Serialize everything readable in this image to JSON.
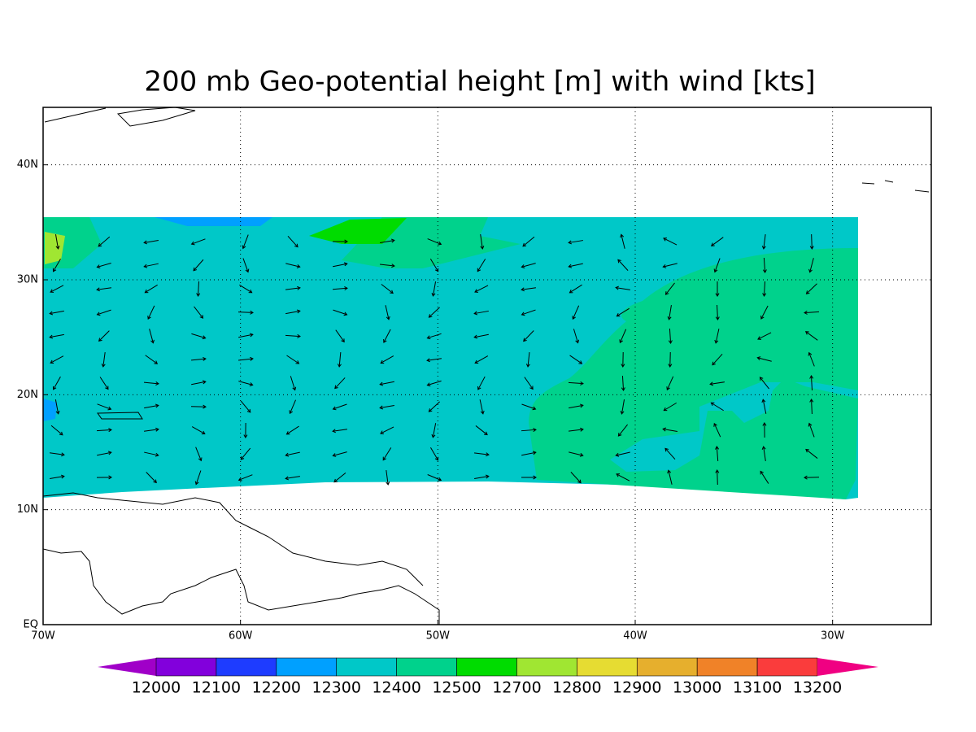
{
  "map": {
    "title": "200 mb Geo-potential height [m] with wind [kts]",
    "lon_range": [
      -70,
      -25
    ],
    "lat_range": [
      0,
      45
    ],
    "lon_ticks": [
      {
        "value": -70,
        "label": "70W"
      },
      {
        "value": -60,
        "label": "60W"
      },
      {
        "value": -50,
        "label": "50W"
      },
      {
        "value": -40,
        "label": "40W"
      },
      {
        "value": -30,
        "label": "30W"
      }
    ],
    "lat_ticks": [
      {
        "value": 0,
        "label": "EQ"
      },
      {
        "value": 10,
        "label": "10N"
      },
      {
        "value": 20,
        "label": "20N"
      },
      {
        "value": 30,
        "label": "30N"
      },
      {
        "value": 40,
        "label": "40N"
      }
    ],
    "grid": true,
    "colorbar": {
      "levels": [
        12000,
        12100,
        12200,
        12300,
        12400,
        12500,
        12700,
        12800,
        12900,
        13000,
        13100,
        13200
      ],
      "colors": [
        "#a000c8",
        "#8200dc",
        "#1e3cff",
        "#00a0ff",
        "#00c8c8",
        "#00d28c",
        "#00dc00",
        "#a0e632",
        "#e6dc32",
        "#e6af2d",
        "#f08228",
        "#fa3c3c",
        "#f00082"
      ]
    }
  }
}
